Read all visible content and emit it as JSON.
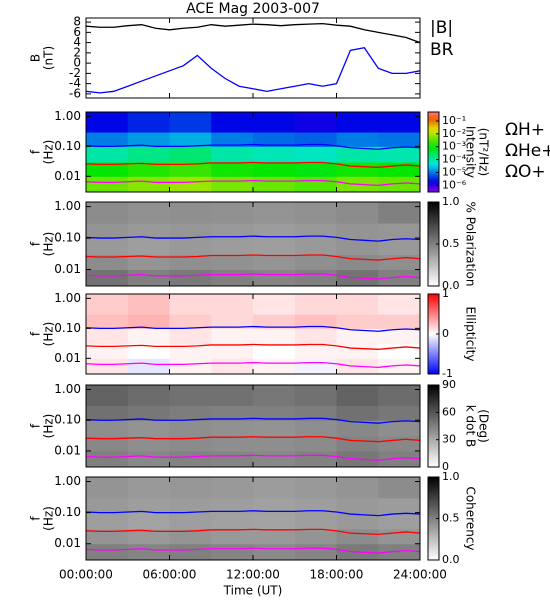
{
  "chart_data": [
    {
      "type": "line",
      "title": "ACE Mag 2003-007",
      "ylabel": [
        "B",
        "(nT)"
      ],
      "x": [
        0,
        1,
        2,
        3,
        4,
        5,
        6,
        7,
        8,
        9,
        10,
        11,
        12,
        13,
        14,
        15,
        16,
        17,
        18,
        19,
        20,
        21,
        22,
        23,
        24
      ],
      "xlim": [
        0,
        24
      ],
      "xticks": [
        0,
        6,
        12,
        18,
        24
      ],
      "ylim": [
        -6.8,
        8.8
      ],
      "yticks": [
        -6,
        -4,
        -2,
        0,
        2,
        4,
        6,
        8
      ],
      "series": [
        {
          "name": "|B|",
          "color": "#000000",
          "values": [
            7.2,
            7,
            7,
            7.3,
            7.5,
            6.8,
            6.5,
            6.8,
            7,
            7.5,
            7.2,
            7.4,
            7.6,
            7.5,
            7.3,
            7.5,
            7.6,
            7.7,
            7.4,
            7.2,
            6.5,
            6,
            5.5,
            5,
            4
          ]
        },
        {
          "name": "BR",
          "color": "#0000ff",
          "values": [
            -5.5,
            -5.8,
            -5.5,
            -4.5,
            -3.5,
            -2.5,
            -1.5,
            -0.5,
            1.5,
            -1,
            -3,
            -4.5,
            -5,
            -5.5,
            -5,
            -4.5,
            -4,
            -4.5,
            -4,
            2.5,
            3,
            -1,
            -2,
            -2,
            -1.5
          ]
        }
      ]
    },
    {
      "type": "heatmap",
      "ylabel": [
        "f",
        "(Hz)"
      ],
      "yscale": "log",
      "xlim": [
        0,
        24
      ],
      "xticks": [
        0,
        6,
        12,
        18,
        24
      ],
      "ylim": [
        0.003,
        1.4
      ],
      "yticks": [
        {
          "value": 0.01,
          "label": "0.01"
        },
        {
          "value": 0.1,
          "label": "0.10"
        },
        {
          "value": 1,
          "label": "1.00"
        }
      ],
      "bins_x": [
        0,
        3,
        6,
        9,
        12,
        15,
        18,
        21,
        24
      ],
      "bins_y": [
        0.003,
        0.01,
        0.03,
        0.1,
        0.3,
        1.4
      ],
      "z": [
        [
          0.004,
          0.006,
          0.008,
          0.005,
          0.004,
          0.003,
          0.005,
          0.004
        ],
        [
          0.001,
          0.0015,
          0.002,
          0.0012,
          0.001,
          0.0008,
          0.0012,
          0.001
        ],
        [
          0.0001,
          0.00015,
          0.0002,
          0.0001,
          8e-05,
          7e-05,
          0.0001,
          9e-05
        ],
        [
          1e-05,
          1.5e-05,
          2e-05,
          1e-05,
          8e-06,
          7e-06,
          1e-05,
          9e-06
        ],
        [
          2e-06,
          3e-06,
          4e-06,
          2e-06,
          2e-06,
          1.5e-06,
          2e-06,
          2e-06
        ]
      ],
      "colormap": "rainbow",
      "cscale": "log",
      "clim": [
        3e-07,
        0.5
      ],
      "cticks": [
        {
          "value": 1e-06,
          "label": "10⁻⁶"
        },
        {
          "value": 1e-05,
          "label": "10⁻⁵"
        },
        {
          "value": 0.0001,
          "label": "10⁻⁴"
        },
        {
          "value": 0.001,
          "label": "10⁻³"
        },
        {
          "value": 0.01,
          "label": "10⁻²"
        },
        {
          "value": 0.1,
          "label": "10⁻¹"
        }
      ],
      "clabel": [
        "Intensity",
        "(nT²/Hz)"
      ],
      "x": [
        0,
        1,
        2,
        3,
        4,
        5,
        6,
        7,
        8,
        9,
        10,
        11,
        12,
        13,
        14,
        15,
        16,
        17,
        18,
        19,
        20,
        21,
        22,
        23,
        24
      ],
      "series": [
        {
          "name": "ΩH+",
          "color": "#0000ff",
          "values": [
            0.105,
            0.1,
            0.1,
            0.105,
            0.11,
            0.1,
            0.1,
            0.1,
            0.105,
            0.11,
            0.11,
            0.11,
            0.115,
            0.11,
            0.11,
            0.11,
            0.115,
            0.115,
            0.105,
            0.09,
            0.085,
            0.08,
            0.09,
            0.095,
            0.09
          ]
        },
        {
          "name": "ΩHe+",
          "color": "#ff0000",
          "values": [
            0.026,
            0.025,
            0.025,
            0.026,
            0.027,
            0.025,
            0.025,
            0.025,
            0.026,
            0.028,
            0.028,
            0.028,
            0.029,
            0.028,
            0.028,
            0.028,
            0.029,
            0.029,
            0.026,
            0.022,
            0.021,
            0.02,
            0.022,
            0.024,
            0.022
          ]
        },
        {
          "name": "ΩO+",
          "color": "#ff00ff",
          "values": [
            0.0066,
            0.0063,
            0.0063,
            0.0066,
            0.0069,
            0.0063,
            0.0063,
            0.0063,
            0.0066,
            0.0069,
            0.0069,
            0.0069,
            0.0072,
            0.0069,
            0.0069,
            0.0069,
            0.0072,
            0.0072,
            0.0066,
            0.0056,
            0.0053,
            0.005,
            0.0056,
            0.006,
            0.0056
          ]
        }
      ]
    },
    {
      "type": "heatmap",
      "ylabel": [
        "f",
        "(Hz)"
      ],
      "yscale": "log",
      "overlay": true,
      "xlim": [
        0,
        24
      ],
      "xticks": [
        0,
        6,
        12,
        18,
        24
      ],
      "ylim": [
        0.003,
        1.4
      ],
      "yticks": [
        {
          "value": 0.01,
          "label": "0.01"
        },
        {
          "value": 0.1,
          "label": "0.10"
        },
        {
          "value": 1,
          "label": "1.00"
        }
      ],
      "bins_x": [
        0,
        3,
        6,
        9,
        12,
        15,
        18,
        21,
        24
      ],
      "bins_y": [
        0.003,
        0.01,
        0.03,
        0.1,
        0.3,
        1.4
      ],
      "z": [
        [
          0.55,
          0.5,
          0.52,
          0.5,
          0.48,
          0.5,
          0.55,
          0.5
        ],
        [
          0.45,
          0.42,
          0.44,
          0.43,
          0.42,
          0.44,
          0.46,
          0.44
        ],
        [
          0.4,
          0.38,
          0.4,
          0.39,
          0.38,
          0.4,
          0.42,
          0.4
        ],
        [
          0.42,
          0.4,
          0.41,
          0.4,
          0.39,
          0.4,
          0.42,
          0.41
        ],
        [
          0.45,
          0.43,
          0.44,
          0.43,
          0.42,
          0.43,
          0.45,
          0.5
        ]
      ],
      "colormap": "gray_r",
      "cscale": "linear",
      "clim": [
        0,
        1
      ],
      "cticks": [
        {
          "value": 0,
          "label": "0.0"
        },
        {
          "value": 0.5,
          "label": "0.5"
        },
        {
          "value": 1,
          "label": "1.0"
        }
      ],
      "clabel": [
        "% Polarization"
      ]
    },
    {
      "type": "heatmap",
      "ylabel": [
        "f",
        "(Hz)"
      ],
      "yscale": "log",
      "overlay": true,
      "xlim": [
        0,
        24
      ],
      "xticks": [
        0,
        6,
        12,
        18,
        24
      ],
      "ylim": [
        0.003,
        1.4
      ],
      "yticks": [
        {
          "value": 0.01,
          "label": "0.01"
        },
        {
          "value": 0.1,
          "label": "0.10"
        },
        {
          "value": 1,
          "label": "1.00"
        }
      ],
      "bins_x": [
        0,
        3,
        6,
        9,
        12,
        15,
        18,
        21,
        24
      ],
      "bins_y": [
        0.003,
        0.01,
        0.03,
        0.1,
        0.3,
        1.4
      ],
      "z": [
        [
          0.1,
          -0.1,
          0.05,
          0.1,
          0.05,
          -0.05,
          0.1,
          0.05
        ],
        [
          0.05,
          0,
          0.05,
          0.05,
          0,
          0.05,
          0.05,
          0
        ],
        [
          0.1,
          0.05,
          0.1,
          0.05,
          0.05,
          0.1,
          0.05,
          0.05
        ],
        [
          0.25,
          0.3,
          0.2,
          0.15,
          0.2,
          0.25,
          0.2,
          0.2
        ],
        [
          0.2,
          0.25,
          0.15,
          0.15,
          0.1,
          0.15,
          0.15,
          0.1
        ]
      ],
      "colormap": "bwr",
      "cscale": "linear",
      "clim": [
        -1,
        1
      ],
      "cticks": [
        -1,
        0,
        1
      ],
      "clabel": [
        "Ellipticity"
      ]
    },
    {
      "type": "heatmap",
      "ylabel": [
        "f",
        "(Hz)"
      ],
      "yscale": "log",
      "overlay": true,
      "xlim": [
        0,
        24
      ],
      "xticks": [
        0,
        6,
        12,
        18,
        24
      ],
      "ylim": [
        0.003,
        1.4
      ],
      "yticks": [
        {
          "value": 0.01,
          "label": "0.01"
        },
        {
          "value": 0.1,
          "label": "0.10"
        },
        {
          "value": 1,
          "label": "1.00"
        }
      ],
      "bins_x": [
        0,
        3,
        6,
        9,
        12,
        15,
        18,
        21,
        24
      ],
      "bins_y": [
        0.003,
        0.01,
        0.03,
        0.1,
        0.3,
        1.4
      ],
      "z": [
        [
          45,
          42,
          44,
          43,
          42,
          44,
          48,
          45
        ],
        [
          42,
          40,
          41,
          40,
          40,
          41,
          44,
          42
        ],
        [
          40,
          38,
          40,
          39,
          38,
          40,
          42,
          40
        ],
        [
          50,
          48,
          46,
          45,
          45,
          46,
          50,
          48
        ],
        [
          55,
          52,
          50,
          50,
          48,
          50,
          55,
          52
        ]
      ],
      "colormap": "gray_r",
      "cscale": "linear",
      "clim": [
        0,
        90
      ],
      "cticks": [
        0,
        30,
        60,
        90
      ],
      "clabel": [
        "k dot B",
        "(Deg)"
      ]
    },
    {
      "type": "heatmap",
      "ylabel": [
        "f",
        "(Hz)"
      ],
      "yscale": "log",
      "overlay": true,
      "xlabel": "Time (UT)",
      "xlim": [
        0,
        24
      ],
      "xticks": [
        {
          "value": 0,
          "label": "00:00:00"
        },
        {
          "value": 6,
          "label": "06:00:00"
        },
        {
          "value": 12,
          "label": "12:00:00"
        },
        {
          "value": 18,
          "label": "18:00:00"
        },
        {
          "value": 24,
          "label": "24:00:00"
        }
      ],
      "ylim": [
        0.003,
        1.4
      ],
      "yticks": [
        {
          "value": 0.01,
          "label": "0.01"
        },
        {
          "value": 0.1,
          "label": "0.10"
        },
        {
          "value": 1,
          "label": "1.00"
        }
      ],
      "bins_x": [
        0,
        3,
        6,
        9,
        12,
        15,
        18,
        21,
        24
      ],
      "bins_y": [
        0.003,
        0.01,
        0.03,
        0.1,
        0.3,
        1.4
      ],
      "z": [
        [
          0.5,
          0.48,
          0.5,
          0.48,
          0.46,
          0.48,
          0.52,
          0.5
        ],
        [
          0.42,
          0.4,
          0.42,
          0.4,
          0.4,
          0.42,
          0.45,
          0.42
        ],
        [
          0.38,
          0.36,
          0.38,
          0.37,
          0.36,
          0.38,
          0.4,
          0.38
        ],
        [
          0.4,
          0.38,
          0.39,
          0.38,
          0.37,
          0.38,
          0.4,
          0.39
        ],
        [
          0.42,
          0.4,
          0.41,
          0.4,
          0.39,
          0.4,
          0.42,
          0.45
        ]
      ],
      "colormap": "gray_r",
      "cscale": "linear",
      "clim": [
        0,
        1
      ],
      "cticks": [
        {
          "value": 0,
          "label": "0.0"
        },
        {
          "value": 0.5,
          "label": "0.5"
        },
        {
          "value": 1,
          "label": "1.0"
        }
      ],
      "clabel": [
        "Coherency"
      ]
    }
  ]
}
